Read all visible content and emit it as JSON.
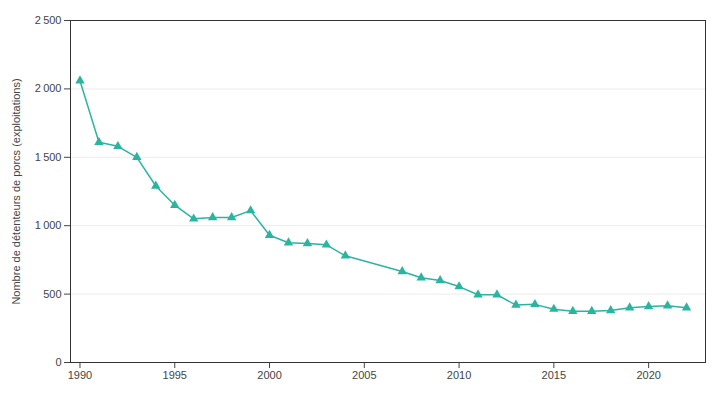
{
  "chart_data": {
    "type": "line",
    "x": [
      1990,
      1991,
      1992,
      1993,
      1994,
      1995,
      1996,
      1997,
      1998,
      1999,
      2000,
      2001,
      2002,
      2003,
      2004,
      2007,
      2008,
      2009,
      2010,
      2011,
      2012,
      2013,
      2014,
      2015,
      2016,
      2017,
      2018,
      2019,
      2020,
      2021,
      2022
    ],
    "values": [
      2060,
      1610,
      1580,
      1500,
      1290,
      1150,
      1050,
      1060,
      1060,
      1110,
      930,
      875,
      870,
      860,
      780,
      665,
      620,
      600,
      555,
      495,
      495,
      420,
      425,
      390,
      375,
      375,
      380,
      400,
      410,
      415,
      400
    ],
    "color": "#2bb5a0",
    "marker": "triangle",
    "ylabel": "Nombre de détenteurs de porcs (exploitations)",
    "xlim": [
      1989.5,
      2023.0
    ],
    "xticks": [
      1990,
      1995,
      2000,
      2005,
      2010,
      2015,
      2020
    ],
    "ylim": [
      0,
      2500
    ],
    "yticks": [
      0,
      500,
      {
        "value": 1000,
        "label": "1 000"
      },
      {
        "value": 1500,
        "label": "1 500"
      },
      {
        "value": 2000,
        "label": "2 000"
      },
      {
        "value": 2500,
        "label": "2 500"
      }
    ],
    "grid": true
  }
}
